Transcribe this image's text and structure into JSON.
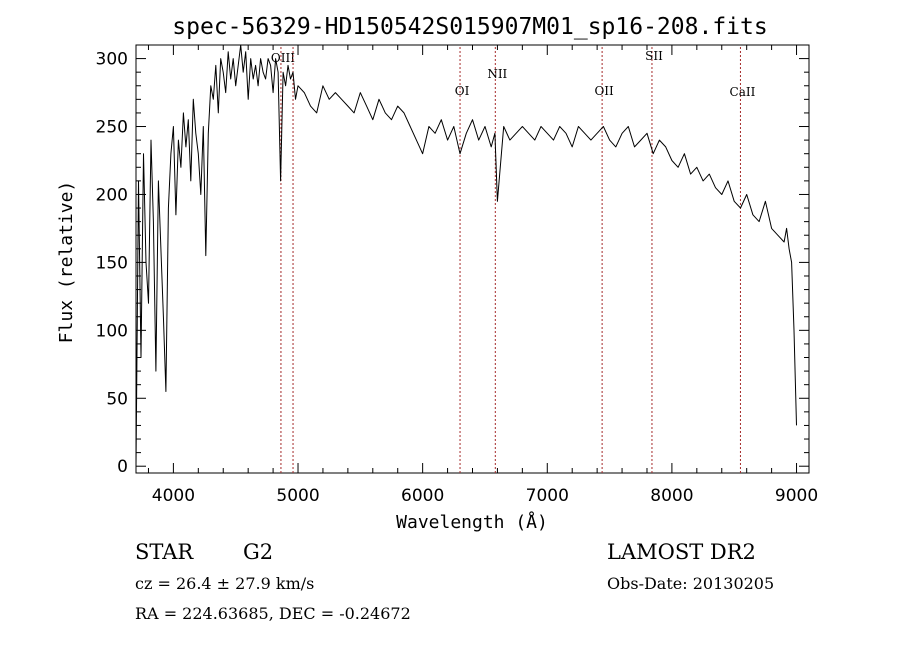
{
  "chart_data": {
    "type": "line",
    "title": "spec-56329-HD150542S015907M01_sp16-208.fits",
    "xlabel": "Wavelength (Å)",
    "ylabel": "Flux (relative)",
    "xlim": [
      3700,
      9100
    ],
    "ylim": [
      -5,
      310
    ],
    "x_ticks": [
      4000,
      5000,
      6000,
      7000,
      8000,
      9000
    ],
    "y_ticks": [
      0,
      50,
      100,
      150,
      200,
      250,
      300
    ],
    "grid": false,
    "line_color": "#000000",
    "marker_color": "#a52a2a",
    "spectral_lines": [
      {
        "name": "OIII",
        "x": 4863
      },
      {
        "name": "",
        "x": 4960
      },
      {
        "name": "OI",
        "x": 6300
      },
      {
        "name": "NII",
        "x": 6583
      },
      {
        "name": "OII",
        "x": 7440
      },
      {
        "name": "SII",
        "x": 7840
      },
      {
        "name": "CaII",
        "x": 8550
      }
    ],
    "series": [
      {
        "x": [
          3700,
          3720,
          3740,
          3760,
          3780,
          3800,
          3820,
          3840,
          3860,
          3880,
          3900,
          3920,
          3940,
          3960,
          3980,
          4000,
          4020,
          4040,
          4060,
          4080,
          4100,
          4120,
          4140,
          4160,
          4180,
          4200,
          4220,
          4240,
          4260,
          4280,
          4300,
          4320,
          4340,
          4360,
          4380,
          4400,
          4420,
          4440,
          4460,
          4480,
          4500,
          4520,
          4540,
          4560,
          4580,
          4600,
          4620,
          4640,
          4660,
          4680,
          4700,
          4720,
          4740,
          4760,
          4780,
          4800,
          4820,
          4840,
          4860,
          4880,
          4900,
          4920,
          4940,
          4960,
          4980,
          5000,
          5050,
          5100,
          5150,
          5200,
          5250,
          5300,
          5350,
          5400,
          5450,
          5500,
          5550,
          5600,
          5650,
          5700,
          5750,
          5800,
          5850,
          5900,
          5950,
          6000,
          6050,
          6100,
          6150,
          6200,
          6250,
          6300,
          6350,
          6400,
          6450,
          6500,
          6550,
          6580,
          6600,
          6650,
          6700,
          6750,
          6800,
          6850,
          6900,
          6950,
          7000,
          7050,
          7100,
          7150,
          7200,
          7250,
          7300,
          7350,
          7400,
          7450,
          7500,
          7550,
          7600,
          7650,
          7700,
          7750,
          7800,
          7850,
          7900,
          7950,
          8000,
          8050,
          8100,
          8150,
          8200,
          8250,
          8300,
          8350,
          8400,
          8450,
          8500,
          8550,
          8600,
          8650,
          8700,
          8750,
          8800,
          8850,
          8900,
          8920,
          8940,
          8960,
          8980,
          9000
        ],
        "y": [
          0,
          210,
          80,
          230,
          150,
          120,
          240,
          180,
          70,
          210,
          160,
          110,
          55,
          190,
          230,
          250,
          185,
          240,
          220,
          260,
          235,
          255,
          210,
          270,
          245,
          230,
          200,
          250,
          155,
          245,
          280,
          270,
          295,
          260,
          300,
          290,
          275,
          305,
          285,
          300,
          280,
          295,
          310,
          290,
          305,
          270,
          300,
          285,
          295,
          280,
          300,
          290,
          285,
          300,
          295,
          275,
          300,
          290,
          210,
          290,
          280,
          295,
          285,
          290,
          270,
          280,
          275,
          265,
          260,
          280,
          270,
          275,
          270,
          265,
          260,
          275,
          265,
          255,
          270,
          260,
          255,
          265,
          260,
          250,
          240,
          230,
          250,
          245,
          255,
          240,
          250,
          230,
          245,
          255,
          240,
          250,
          235,
          245,
          195,
          250,
          240,
          245,
          250,
          245,
          240,
          250,
          245,
          240,
          250,
          245,
          235,
          250,
          245,
          240,
          245,
          250,
          240,
          235,
          245,
          250,
          235,
          240,
          245,
          230,
          240,
          235,
          225,
          220,
          230,
          215,
          220,
          210,
          215,
          205,
          200,
          210,
          195,
          190,
          200,
          185,
          180,
          195,
          175,
          170,
          165,
          175,
          160,
          150,
          100,
          30
        ]
      }
    ]
  },
  "info": {
    "object_class": "STAR",
    "subclass": "G2",
    "survey": "LAMOST DR2",
    "redshift_line": "cz = 26.4 ± 27.9 km/s",
    "obs_date_line": "Obs-Date: 20130205",
    "coords_line": "RA = 224.63685, DEC =  -0.24672"
  }
}
